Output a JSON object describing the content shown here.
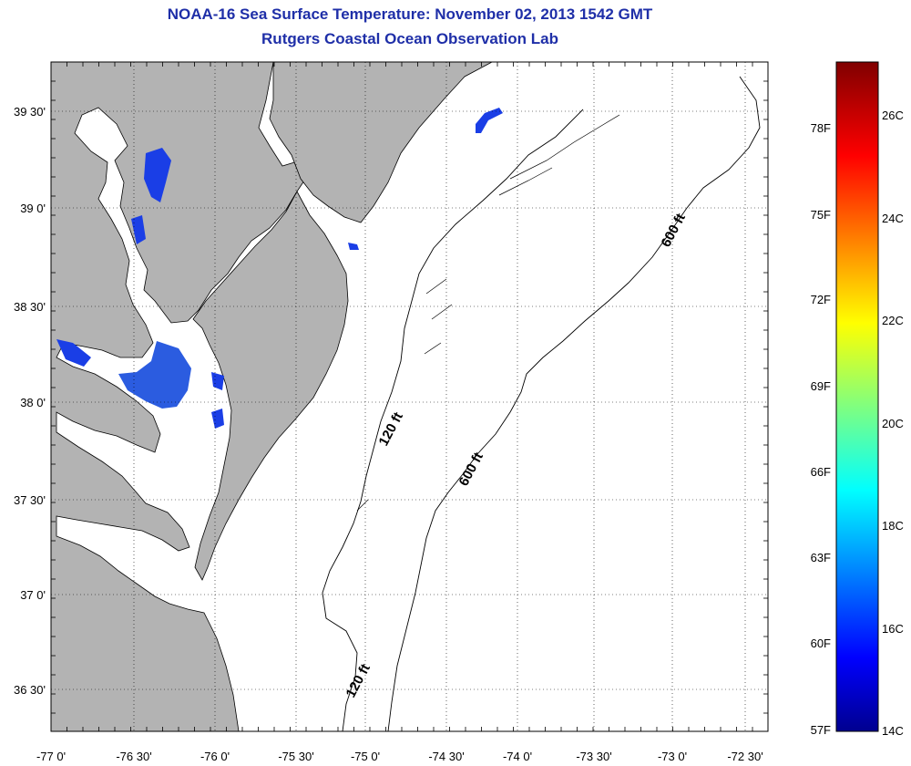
{
  "header": {
    "title": "NOAA-16 Sea Surface Temperature:  November 02, 2013 1542 GMT",
    "subtitle": "Rutgers Coastal Ocean Observation Lab"
  },
  "map": {
    "longitude_labels": [
      "-77 0'",
      "-76 30'",
      "-76 0'",
      "-75 30'",
      "-75 0'",
      "-74 30'",
      "-74 0'",
      "-73 30'",
      "-73 0'",
      "-72 30'"
    ],
    "latitude_labels": [
      "39 30'",
      "39 0'",
      "38 30'",
      "38 0'",
      "37 30'",
      "37 0'",
      "36 30'"
    ],
    "contour_labels": [
      "120 ft",
      "600 ft",
      "600 ft",
      "120 ft"
    ],
    "colors": {
      "land": "#b3b3b3",
      "no_data": "#ffffff",
      "cold_water": "#1a3ee6",
      "title": "#1f2fa8"
    }
  },
  "colorbar": {
    "fahrenheit_labels": [
      "78F",
      "75F",
      "72F",
      "69F",
      "66F",
      "63F",
      "60F",
      "57F"
    ],
    "celsius_labels": [
      "26C",
      "24C",
      "22C",
      "20C",
      "18C",
      "16C",
      "14C"
    ],
    "range_celsius": [
      14,
      27.5
    ],
    "colormap": "jet"
  }
}
